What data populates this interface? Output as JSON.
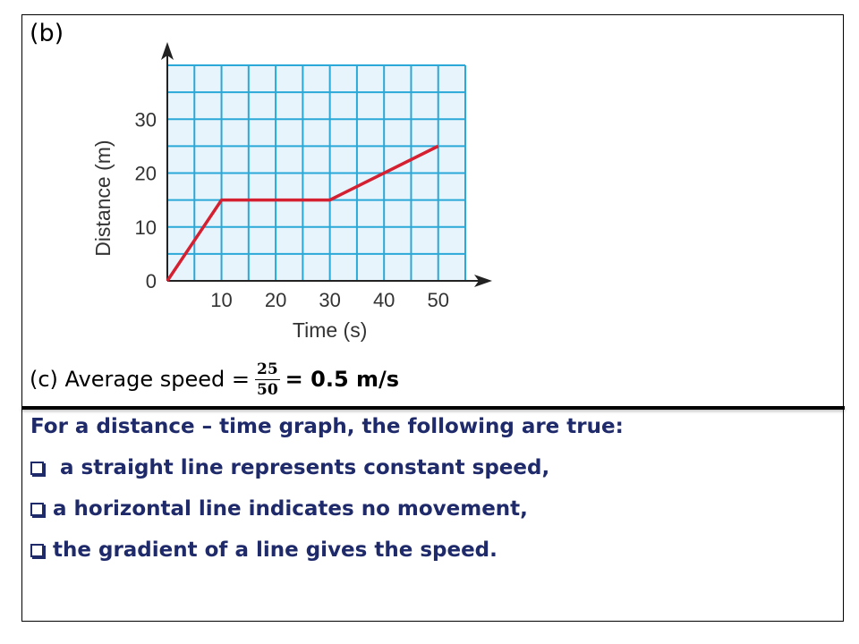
{
  "part_b_label": "(b)",
  "chart_data": {
    "type": "line",
    "title": "",
    "xlabel": "Time (s)",
    "ylabel": "Distance (m)",
    "x_ticks": [
      10,
      20,
      30,
      40,
      50
    ],
    "y_ticks": [
      0,
      10,
      20,
      30
    ],
    "xlim": [
      0,
      55
    ],
    "ylim": [
      0,
      40
    ],
    "grid": true,
    "grid_step_x": 5,
    "grid_step_y": 5,
    "series": [
      {
        "name": "distance",
        "color": "#d42030",
        "x": [
          0,
          10,
          30,
          50
        ],
        "y": [
          0,
          15,
          15,
          25
        ]
      }
    ],
    "colors": {
      "grid": "#2aa8d8",
      "background": "#e8f4fb",
      "axis": "#222222"
    }
  },
  "average_speed": {
    "prefix": "(c) Average speed =",
    "numerator": "25",
    "denominator": "50",
    "result": "= 0.5 m/s"
  },
  "notes": {
    "heading": "For a distance – time graph, the following are true:",
    "items": [
      "a straight line represents constant speed,",
      "a horizontal line indicates no movement,",
      "the gradient of a line gives the speed."
    ],
    "color": "#1f2a6b"
  }
}
